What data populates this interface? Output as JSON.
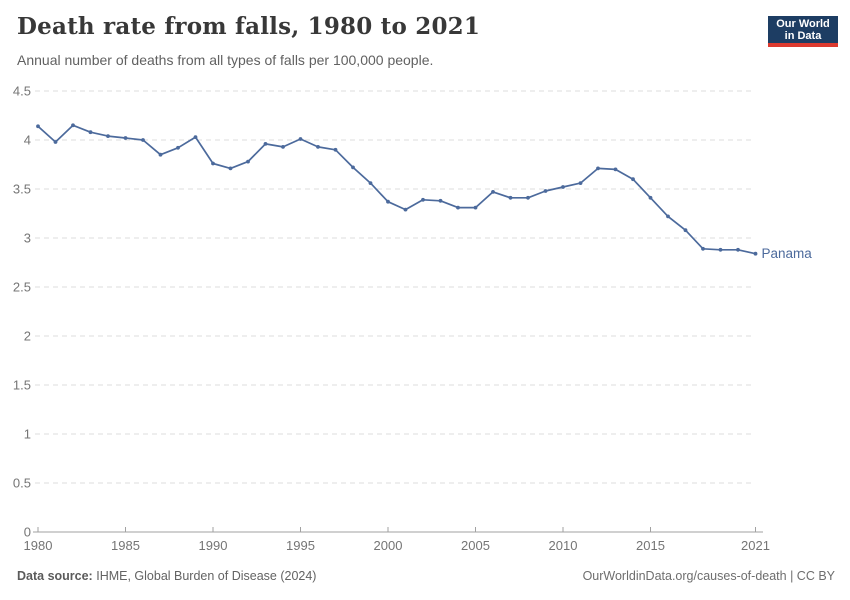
{
  "header": {
    "title": "Death rate from falls, 1980 to 2021",
    "subtitle": "Annual number of deaths from all types of falls per 100,000 people."
  },
  "logo": {
    "line1": "Our World",
    "line2": "in Data",
    "bg_color": "#1d3d63",
    "accent_color": "#dc3a2f"
  },
  "footer": {
    "source_label": "Data source:",
    "source_value": "IHME, Global Burden of Disease (2024)",
    "right_text": "OurWorldinData.org/causes-of-death | CC BY"
  },
  "chart_data": {
    "type": "line",
    "title": "Death rate from falls, 1980 to 2021",
    "subtitle": "Annual number of deaths from all types of falls per 100,000 people.",
    "xlabel": "",
    "ylabel": "",
    "ylim": [
      0,
      4.5
    ],
    "grid": true,
    "grid_style": "dashed",
    "yticks": [
      0,
      0.5,
      1,
      1.5,
      2,
      2.5,
      3,
      3.5,
      4,
      4.5
    ],
    "xticks": [
      1980,
      1985,
      1990,
      1995,
      2000,
      2005,
      2010,
      2015,
      2021
    ],
    "x": [
      1980,
      1981,
      1982,
      1983,
      1984,
      1985,
      1986,
      1987,
      1988,
      1989,
      1990,
      1991,
      1992,
      1993,
      1994,
      1995,
      1996,
      1997,
      1998,
      1999,
      2000,
      2001,
      2002,
      2003,
      2004,
      2005,
      2006,
      2007,
      2008,
      2009,
      2010,
      2011,
      2012,
      2013,
      2014,
      2015,
      2016,
      2017,
      2018,
      2019,
      2020,
      2021
    ],
    "series": [
      {
        "name": "Panama",
        "color": "#4c6a9c",
        "values": [
          4.14,
          3.98,
          4.15,
          4.08,
          4.04,
          4.02,
          4.0,
          3.85,
          3.92,
          4.03,
          3.76,
          3.71,
          3.78,
          3.96,
          3.93,
          4.01,
          3.93,
          3.9,
          3.72,
          3.56,
          3.37,
          3.29,
          3.39,
          3.38,
          3.31,
          3.31,
          3.47,
          3.41,
          3.41,
          3.48,
          3.52,
          3.56,
          3.71,
          3.7,
          3.6,
          3.41,
          3.22,
          3.08,
          2.89,
          2.88,
          2.88,
          2.84
        ]
      }
    ],
    "legend_position": "end-of-line-label",
    "colors": {
      "gridline": "#dcdcdc",
      "axis": "#a1a1a1",
      "tick_label": "#757575"
    }
  }
}
